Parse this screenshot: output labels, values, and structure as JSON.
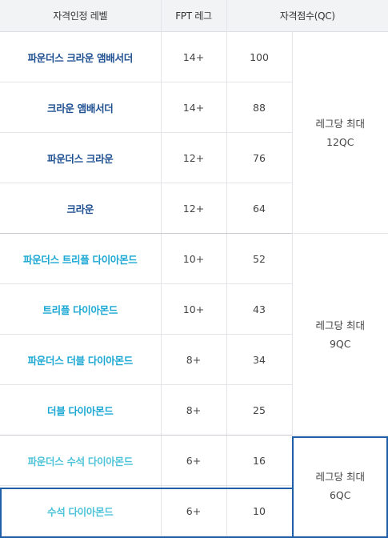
{
  "header": {
    "col_level": "자격인정 레벨",
    "col_fpt": "FPT 레그",
    "col_score": "자격점수(QC)"
  },
  "rows": [
    {
      "level": "파운더스 크라운 앰배서더",
      "fpt": "14+",
      "score": "100"
    },
    {
      "level": "크라운 앰배서더",
      "fpt": "14+",
      "score": "88"
    },
    {
      "level": "파운더스 크라운",
      "fpt": "12+",
      "score": "76"
    },
    {
      "level": "크라운",
      "fpt": "12+",
      "score": "64"
    },
    {
      "level": "파운더스 트리플 다이아몬드",
      "fpt": "10+",
      "score": "52"
    },
    {
      "level": "트리플 다이아몬드",
      "fpt": "10+",
      "score": "43"
    },
    {
      "level": "파운더스 더블 다이아몬드",
      "fpt": "8+",
      "score": "34"
    },
    {
      "level": "더블 다이아몬드",
      "fpt": "8+",
      "score": "25"
    },
    {
      "level": "파운더스 수석 다이아몬드",
      "fpt": "6+",
      "score": "16"
    },
    {
      "level": "수석 다이아몬드",
      "fpt": "6+",
      "score": "10"
    }
  ],
  "groups": [
    {
      "line1": "레그당 최대",
      "line2": "12QC"
    },
    {
      "line1": "레그당 최대",
      "line2": "9QC"
    },
    {
      "line1": "레그당 최대",
      "line2": "6QC"
    }
  ],
  "colors": {
    "ambassador": "#1d4f91",
    "diamond": "#1aa7d3",
    "emerald": "#4cc3d9",
    "highlight": "#1e5fa8",
    "header_bg": "#f2f3f5"
  }
}
